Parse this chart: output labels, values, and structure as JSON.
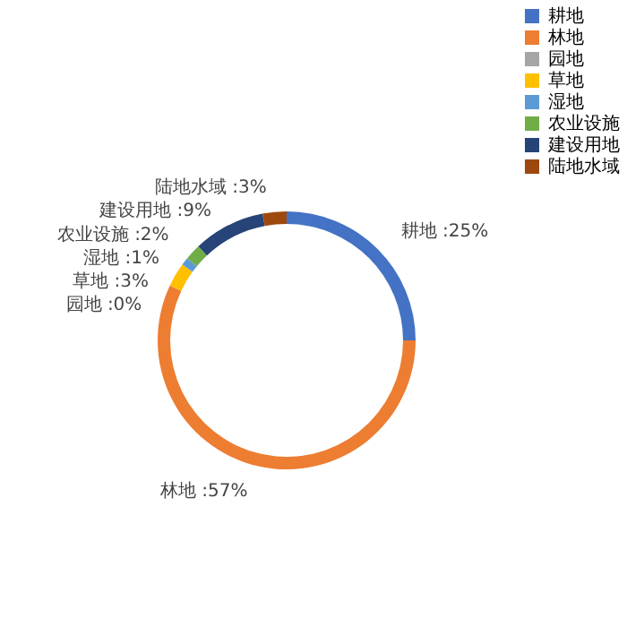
{
  "chart_data": {
    "type": "donut",
    "categories": [
      "耕地",
      "林地",
      "园地",
      "草地",
      "湿地",
      "农业设施",
      "建设用地",
      "陆地水域"
    ],
    "values": [
      25,
      57,
      0,
      3,
      1,
      2,
      9,
      3
    ],
    "colors": [
      "#4472c4",
      "#ed7d31",
      "#a5a5a5",
      "#ffc000",
      "#5b9bd5",
      "#70ad47",
      "#264478",
      "#9e480e"
    ],
    "value_labels": [
      "耕地 :25%",
      "林地 :57%",
      "园地 :0%",
      "草地 :3%",
      "湿地 :1%",
      "农业设施 :2%",
      "建设用地 :9%",
      "陆地水域 :3%"
    ],
    "legend": "top right"
  }
}
